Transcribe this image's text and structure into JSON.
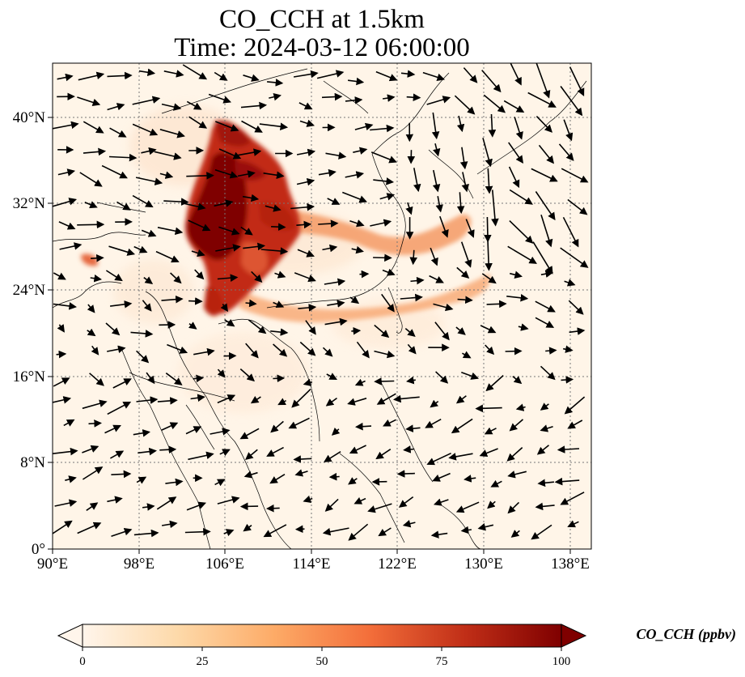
{
  "title": {
    "line1": "CO_CCH at 1.5km",
    "line2": "Time: 2024-03-12 06:00:00"
  },
  "map": {
    "lon_range": [
      90,
      140
    ],
    "lat_range": [
      0,
      45
    ],
    "lon_ticks": [
      "90°E",
      "98°E",
      "106°E",
      "114°E",
      "122°E",
      "130°E",
      "138°E"
    ],
    "lat_ticks": [
      "0°",
      "8°N",
      "16°N",
      "24°N",
      "32°N",
      "40°N"
    ],
    "grid": "dotted",
    "background_color": "#fff5e8"
  },
  "colorbar": {
    "label": "CO_CCH (ppbv)",
    "ticks": [
      "0",
      "25",
      "50",
      "75",
      "100"
    ],
    "range": [
      0,
      100
    ],
    "extend": "both",
    "colormap": [
      "#fff5eb",
      "#fdd9a9",
      "#fdab67",
      "#f36e3a",
      "#c02e17",
      "#7f0000"
    ]
  },
  "plumes": {
    "note_colors": [
      "#7f0000",
      "#b32010",
      "#e35a2e",
      "#f7a46e",
      "#fcd2b0"
    ]
  }
}
